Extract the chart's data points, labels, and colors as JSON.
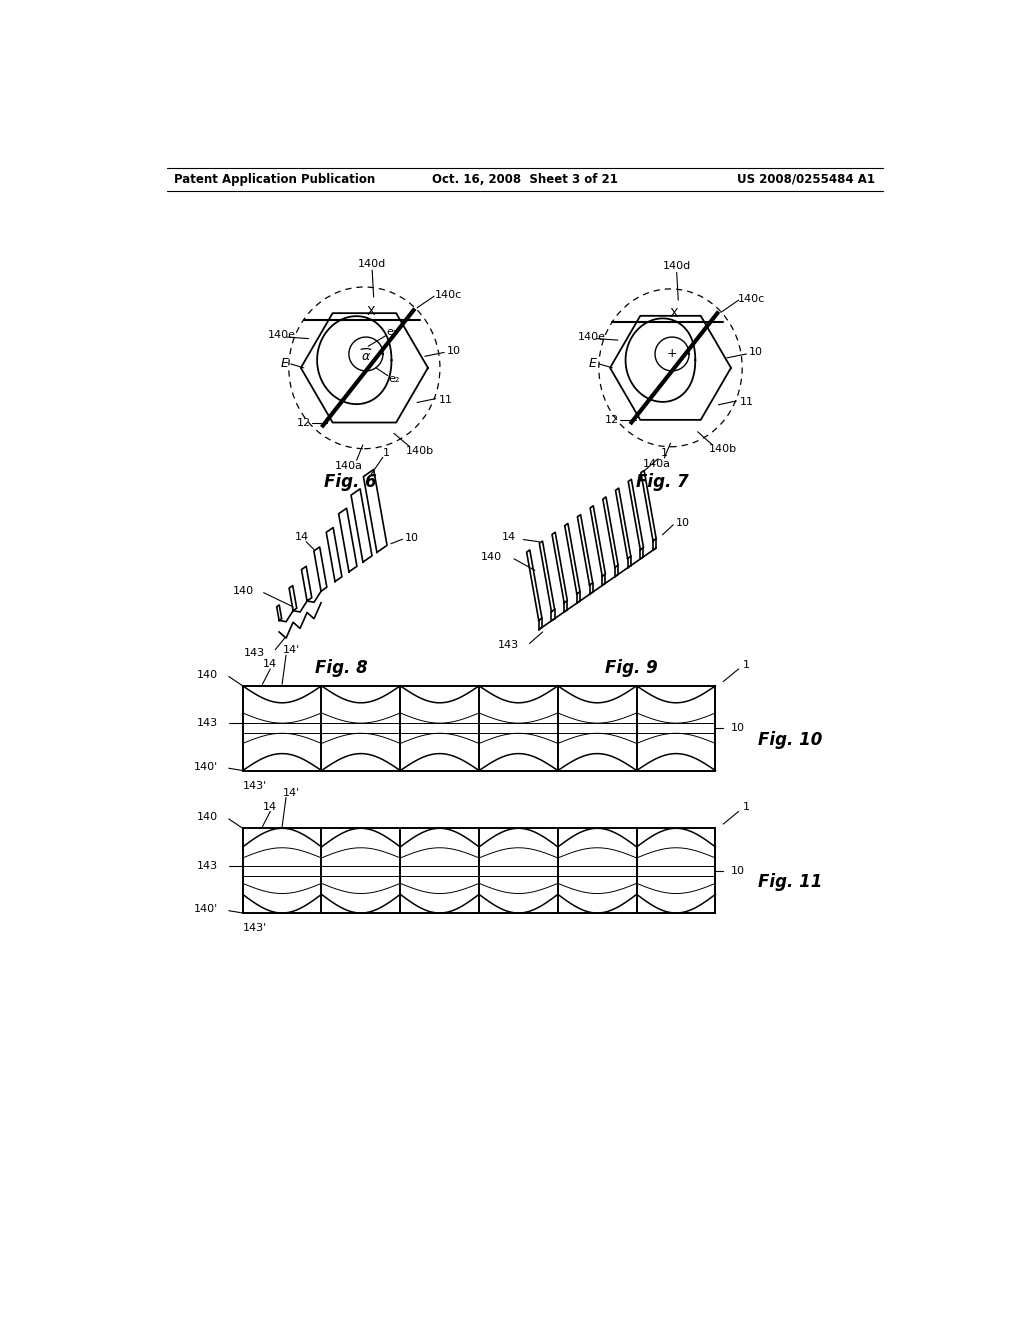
{
  "bg_color": "#ffffff",
  "header_left": "Patent Application Publication",
  "header_mid": "Oct. 16, 2008  Sheet 3 of 21",
  "header_right": "US 2008/0255484 A1",
  "fig6_label": "Fig. 6",
  "fig7_label": "Fig. 7",
  "fig8_label": "Fig. 8",
  "fig9_label": "Fig. 9",
  "fig10_label": "Fig. 10",
  "fig11_label": "Fig. 11"
}
